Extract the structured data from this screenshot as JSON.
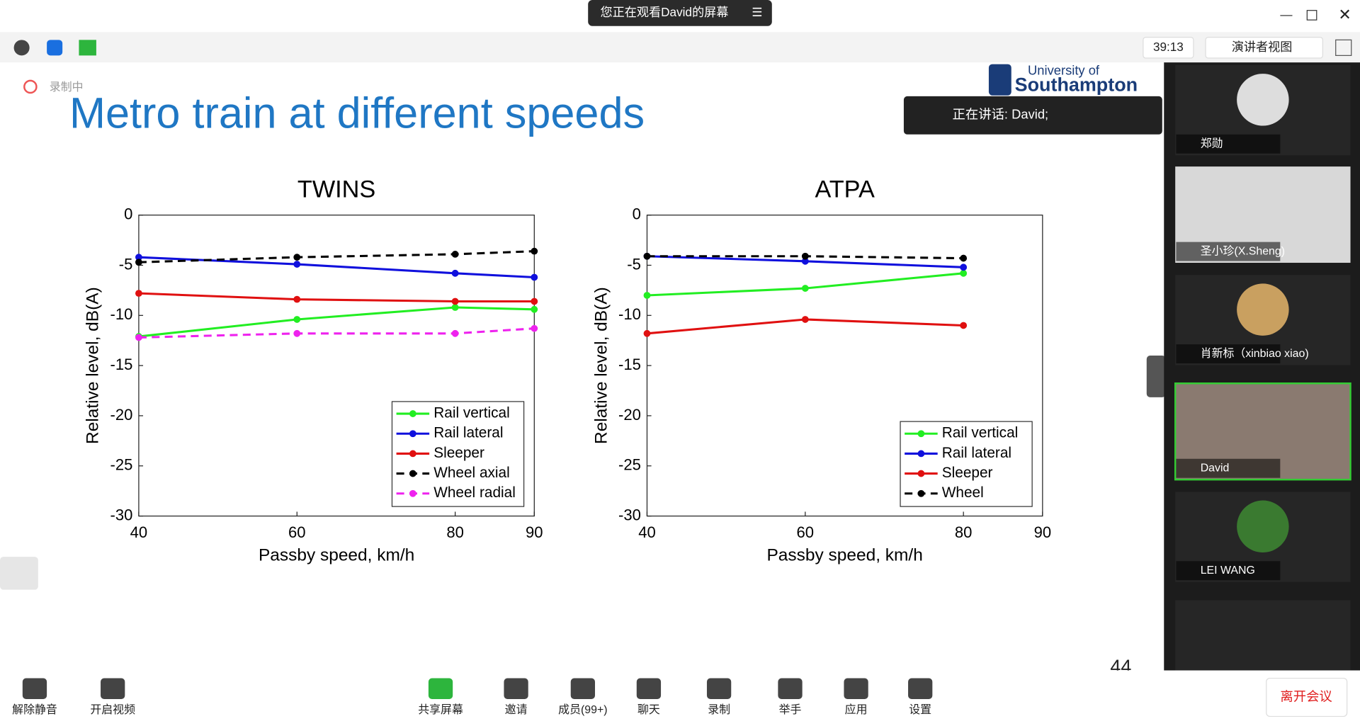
{
  "top_bar": {
    "banner": "您正在观看David的屏幕",
    "timer": "39:13",
    "view": "演讲者视图"
  },
  "recording": "录制中",
  "slide": {
    "title": "Metro train at different speeds",
    "logo_line1": "University of",
    "logo_line2": "Southampton",
    "speaking": "正在讲话: David;",
    "page_number": "44"
  },
  "participants": [
    "郑勋",
    "圣小珍(X.Sheng)",
    "肖新标（xinbiao xiao)",
    "David",
    "LEI WANG"
  ],
  "toolbar": {
    "mute": "解除静音",
    "video": "开启视频",
    "share": "共享屏幕",
    "invite": "邀请",
    "members": "成员(99+)",
    "chat": "聊天",
    "record": "录制",
    "raise_hand": "举手",
    "apps": "应用",
    "settings": "设置",
    "leave": "离开会议"
  },
  "chart_data": [
    {
      "type": "line",
      "title": "TWINS",
      "xlabel": "Passby speed, km/h",
      "ylabel": "Relative level, dB(A)",
      "x": [
        40,
        60,
        80,
        90
      ],
      "xlim": [
        40,
        90
      ],
      "xticks": [
        40,
        60,
        80,
        90
      ],
      "ylim": [
        -30,
        0
      ],
      "yticks": [
        0,
        -5,
        -10,
        -15,
        -20,
        -25,
        -30
      ],
      "legend": "lower right",
      "series": [
        {
          "name": "Rail vertical",
          "color": "#22ee22",
          "dashed": false,
          "values": [
            -12.1,
            -10.4,
            -9.2,
            -9.4
          ]
        },
        {
          "name": "Rail lateral",
          "color": "#1010dd",
          "dashed": false,
          "values": [
            -4.2,
            -4.9,
            -5.8,
            -6.2
          ]
        },
        {
          "name": "Sleeper",
          "color": "#e01010",
          "dashed": false,
          "values": [
            -7.8,
            -8.4,
            -8.6,
            -8.6
          ]
        },
        {
          "name": "Wheel axial",
          "color": "#000000",
          "dashed": true,
          "values": [
            -4.7,
            -4.2,
            -3.9,
            -3.6
          ]
        },
        {
          "name": "Wheel radial",
          "color": "#ee22ee",
          "dashed": true,
          "values": [
            -12.2,
            -11.8,
            -11.8,
            -11.3
          ]
        }
      ]
    },
    {
      "type": "line",
      "title": "ATPA",
      "xlabel": "Passby speed, km/h",
      "ylabel": "Relative level, dB(A)",
      "x": [
        40,
        60,
        80
      ],
      "xlim": [
        40,
        90
      ],
      "xticks": [
        40,
        60,
        80,
        90
      ],
      "ylim": [
        -30,
        0
      ],
      "yticks": [
        0,
        -5,
        -10,
        -15,
        -20,
        -25,
        -30
      ],
      "legend": "lower right",
      "series": [
        {
          "name": "Rail vertical",
          "color": "#22ee22",
          "dashed": false,
          "values": [
            -8.0,
            -7.3,
            -5.8
          ]
        },
        {
          "name": "Rail lateral",
          "color": "#1010dd",
          "dashed": false,
          "values": [
            -4.1,
            -4.6,
            -5.2
          ]
        },
        {
          "name": "Sleeper",
          "color": "#e01010",
          "dashed": false,
          "values": [
            -11.8,
            -10.4,
            -11.0
          ]
        },
        {
          "name": "Wheel",
          "color": "#000000",
          "dashed": true,
          "values": [
            -4.1,
            -4.1,
            -4.3
          ]
        }
      ]
    }
  ]
}
